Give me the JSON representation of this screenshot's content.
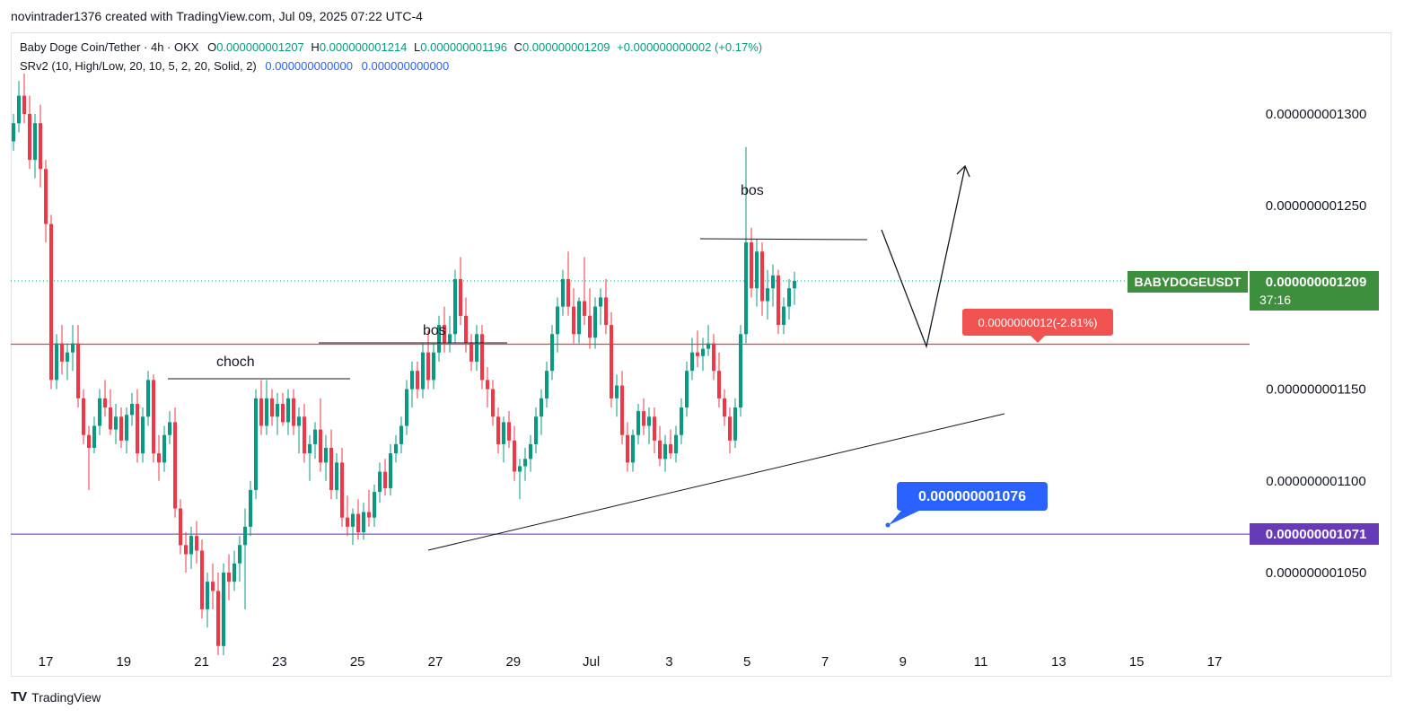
{
  "header": {
    "text": "novintrader1376 created with TradingView.com, Jul 09, 2025 07:22 UTC-4"
  },
  "legend": {
    "symbol": "Baby Doge Coin/Tether · 4h · OKX",
    "o_label": "O",
    "o_value": "0.000000001207",
    "h_label": "H",
    "h_value": "0.000000001214",
    "l_label": "L",
    "l_value": "0.000000001196",
    "c_label": "C",
    "c_value": "0.000000001209",
    "change": "+0.000000000002 (+0.17%)",
    "indicator": "SRv2 (10, High/Low, 20, 10, 5, 2, 20, Solid, 2)",
    "ind_v1": "0.000000000000",
    "ind_v2": "0.000000000000"
  },
  "footer": {
    "logo": "TV",
    "brand": "TradingView"
  },
  "chart_data": {
    "type": "candlestick",
    "symbol": "BABYDOGEUSDT",
    "timeframe": "4h",
    "x_ticks": [
      "17",
      "19",
      "21",
      "23",
      "25",
      "27",
      "29",
      "Jul",
      "3",
      "5",
      "7",
      "9",
      "11",
      "13",
      "15",
      "17"
    ],
    "y_ticks": [
      "0.000000001300",
      "0.000000001250",
      "0.000000001150",
      "0.000000001100",
      "0.000000001050"
    ],
    "y_tick_values": [
      1.3e-09,
      1.25e-09,
      1.15e-09,
      1.1e-09,
      1.05e-09
    ],
    "ylim": [
      1e-09,
      1.32e-09
    ],
    "up_color": "#089981",
    "down_color": "#f23645",
    "candles": [
      [
        1.285,
        1.3,
        1.28,
        1.295
      ],
      [
        1.295,
        1.318,
        1.29,
        1.31
      ],
      [
        1.31,
        1.322,
        1.295,
        1.3
      ],
      [
        1.3,
        1.31,
        1.27,
        1.275
      ],
      [
        1.275,
        1.3,
        1.265,
        1.295
      ],
      [
        1.295,
        1.305,
        1.26,
        1.27
      ],
      [
        1.27,
        1.275,
        1.23,
        1.24
      ],
      [
        1.24,
        1.245,
        1.15,
        1.155
      ],
      [
        1.155,
        1.18,
        1.15,
        1.175
      ],
      [
        1.175,
        1.185,
        1.158,
        1.165
      ],
      [
        1.165,
        1.175,
        1.155,
        1.17
      ],
      [
        1.17,
        1.185,
        1.16,
        1.175
      ],
      [
        1.175,
        1.185,
        1.14,
        1.145
      ],
      [
        1.145,
        1.15,
        1.12,
        1.125
      ],
      [
        1.125,
        1.13,
        1.095,
        1.118
      ],
      [
        1.118,
        1.135,
        1.115,
        1.13
      ],
      [
        1.13,
        1.15,
        1.125,
        1.145
      ],
      [
        1.145,
        1.155,
        1.135,
        1.14
      ],
      [
        1.14,
        1.15,
        1.125,
        1.128
      ],
      [
        1.128,
        1.142,
        1.12,
        1.135
      ],
      [
        1.135,
        1.14,
        1.118,
        1.122
      ],
      [
        1.122,
        1.14,
        1.115,
        1.136
      ],
      [
        1.136,
        1.148,
        1.13,
        1.142
      ],
      [
        1.142,
        1.15,
        1.11,
        1.115
      ],
      [
        1.115,
        1.14,
        1.11,
        1.135
      ],
      [
        1.135,
        1.16,
        1.13,
        1.155
      ],
      [
        1.155,
        1.158,
        1.11,
        1.115
      ],
      [
        1.115,
        1.125,
        1.1,
        1.11
      ],
      [
        1.11,
        1.13,
        1.105,
        1.125
      ],
      [
        1.125,
        1.138,
        1.12,
        1.132
      ],
      [
        1.132,
        1.14,
        1.08,
        1.085
      ],
      [
        1.085,
        1.09,
        1.06,
        1.065
      ],
      [
        1.065,
        1.072,
        1.05,
        1.06
      ],
      [
        1.06,
        1.075,
        1.052,
        1.07
      ],
      [
        1.07,
        1.078,
        1.055,
        1.062
      ],
      [
        1.062,
        1.068,
        1.025,
        1.03
      ],
      [
        1.03,
        1.05,
        1.02,
        1.045
      ],
      [
        1.045,
        1.055,
        1.03,
        1.04
      ],
      [
        1.04,
        1.05,
        1.005,
        1.01
      ],
      [
        1.01,
        1.055,
        1.005,
        1.05
      ],
      [
        1.05,
        1.06,
        1.035,
        1.045
      ],
      [
        1.045,
        1.062,
        1.04,
        1.055
      ],
      [
        1.055,
        1.07,
        1.045,
        1.065
      ],
      [
        1.065,
        1.085,
        1.03,
        1.075
      ],
      [
        1.075,
        1.1,
        1.07,
        1.095
      ],
      [
        1.095,
        1.15,
        1.09,
        1.145
      ],
      [
        1.145,
        1.155,
        1.125,
        1.13
      ],
      [
        1.13,
        1.155,
        1.125,
        1.145
      ],
      [
        1.145,
        1.15,
        1.13,
        1.135
      ],
      [
        1.135,
        1.148,
        1.125,
        1.142
      ],
      [
        1.142,
        1.148,
        1.13,
        1.132
      ],
      [
        1.132,
        1.15,
        1.125,
        1.145
      ],
      [
        1.145,
        1.15,
        1.125,
        1.13
      ],
      [
        1.13,
        1.14,
        1.115,
        1.135
      ],
      [
        1.135,
        1.142,
        1.11,
        1.115
      ],
      [
        1.115,
        1.125,
        1.1,
        1.12
      ],
      [
        1.12,
        1.132,
        1.112,
        1.128
      ],
      [
        1.128,
        1.145,
        1.105,
        1.11
      ],
      [
        1.11,
        1.125,
        1.1,
        1.118
      ],
      [
        1.118,
        1.128,
        1.09,
        1.095
      ],
      [
        1.095,
        1.115,
        1.09,
        1.11
      ],
      [
        1.11,
        1.118,
        1.075,
        1.08
      ],
      [
        1.08,
        1.092,
        1.07,
        1.075
      ],
      [
        1.075,
        1.085,
        1.065,
        1.082
      ],
      [
        1.082,
        1.09,
        1.068,
        1.072
      ],
      [
        1.072,
        1.088,
        1.068,
        1.083
      ],
      [
        1.083,
        1.095,
        1.075,
        1.08
      ],
      [
        1.08,
        1.098,
        1.075,
        1.094
      ],
      [
        1.094,
        1.11,
        1.088,
        1.105
      ],
      [
        1.105,
        1.112,
        1.092,
        1.096
      ],
      [
        1.096,
        1.12,
        1.092,
        1.115
      ],
      [
        1.115,
        1.125,
        1.11,
        1.12
      ],
      [
        1.12,
        1.135,
        1.115,
        1.13
      ],
      [
        1.13,
        1.155,
        1.125,
        1.15
      ],
      [
        1.15,
        1.165,
        1.14,
        1.16
      ],
      [
        1.16,
        1.165,
        1.145,
        1.15
      ],
      [
        1.15,
        1.175,
        1.145,
        1.17
      ],
      [
        1.17,
        1.182,
        1.15,
        1.155
      ],
      [
        1.155,
        1.175,
        1.15,
        1.17
      ],
      [
        1.17,
        1.19,
        1.165,
        1.185
      ],
      [
        1.185,
        1.195,
        1.17,
        1.175
      ],
      [
        1.175,
        1.19,
        1.17,
        1.18
      ],
      [
        1.18,
        1.215,
        1.175,
        1.21
      ],
      [
        1.21,
        1.222,
        1.185,
        1.19
      ],
      [
        1.19,
        1.2,
        1.17,
        1.175
      ],
      [
        1.175,
        1.18,
        1.16,
        1.165
      ],
      [
        1.165,
        1.185,
        1.16,
        1.18
      ],
      [
        1.18,
        1.185,
        1.15,
        1.155
      ],
      [
        1.155,
        1.162,
        1.14,
        1.15
      ],
      [
        1.15,
        1.155,
        1.13,
        1.135
      ],
      [
        1.135,
        1.14,
        1.115,
        1.12
      ],
      [
        1.12,
        1.135,
        1.11,
        1.132
      ],
      [
        1.132,
        1.138,
        1.118,
        1.122
      ],
      [
        1.122,
        1.13,
        1.1,
        1.105
      ],
      [
        1.105,
        1.112,
        1.09,
        1.108
      ],
      [
        1.108,
        1.118,
        1.1,
        1.112
      ],
      [
        1.112,
        1.125,
        1.105,
        1.12
      ],
      [
        1.12,
        1.14,
        1.115,
        1.135
      ],
      [
        1.135,
        1.15,
        1.125,
        1.145
      ],
      [
        1.145,
        1.165,
        1.14,
        1.16
      ],
      [
        1.16,
        1.185,
        1.155,
        1.18
      ],
      [
        1.18,
        1.2,
        1.17,
        1.195
      ],
      [
        1.195,
        1.215,
        1.19,
        1.21
      ],
      [
        1.21,
        1.225,
        1.19,
        1.195
      ],
      [
        1.195,
        1.205,
        1.175,
        1.18
      ],
      [
        1.18,
        1.2,
        1.175,
        1.198
      ],
      [
        1.198,
        1.222,
        1.185,
        1.19
      ],
      [
        1.19,
        1.205,
        1.172,
        1.178
      ],
      [
        1.178,
        1.2,
        1.172,
        1.195
      ],
      [
        1.195,
        1.205,
        1.185,
        1.2
      ],
      [
        1.2,
        1.21,
        1.18,
        1.185
      ],
      [
        1.185,
        1.192,
        1.14,
        1.145
      ],
      [
        1.145,
        1.158,
        1.135,
        1.152
      ],
      [
        1.152,
        1.16,
        1.12,
        1.125
      ],
      [
        1.125,
        1.132,
        1.105,
        1.11
      ],
      [
        1.11,
        1.128,
        1.105,
        1.125
      ],
      [
        1.125,
        1.142,
        1.12,
        1.138
      ],
      [
        1.138,
        1.145,
        1.125,
        1.13
      ],
      [
        1.13,
        1.14,
        1.12,
        1.135
      ],
      [
        1.135,
        1.14,
        1.115,
        1.122
      ],
      [
        1.122,
        1.13,
        1.108,
        1.112
      ],
      [
        1.112,
        1.125,
        1.105,
        1.12
      ],
      [
        1.12,
        1.128,
        1.112,
        1.115
      ],
      [
        1.115,
        1.13,
        1.11,
        1.125
      ],
      [
        1.125,
        1.145,
        1.12,
        1.14
      ],
      [
        1.14,
        1.165,
        1.135,
        1.16
      ],
      [
        1.16,
        1.178,
        1.155,
        1.17
      ],
      [
        1.17,
        1.182,
        1.162,
        1.168
      ],
      [
        1.168,
        1.178,
        1.16,
        1.172
      ],
      [
        1.172,
        1.185,
        1.168,
        1.175
      ],
      [
        1.175,
        1.18,
        1.155,
        1.16
      ],
      [
        1.16,
        1.17,
        1.14,
        1.145
      ],
      [
        1.145,
        1.15,
        1.13,
        1.135
      ],
      [
        1.135,
        1.14,
        1.115,
        1.122
      ],
      [
        1.122,
        1.145,
        1.118,
        1.14
      ],
      [
        1.14,
        1.185,
        1.135,
        1.18
      ],
      [
        1.18,
        1.282,
        1.175,
        1.23
      ],
      [
        1.23,
        1.238,
        1.2,
        1.205
      ],
      [
        1.205,
        1.232,
        1.195,
        1.225
      ],
      [
        1.225,
        1.23,
        1.19,
        1.198
      ],
      [
        1.198,
        1.215,
        1.188,
        1.205
      ],
      [
        1.205,
        1.218,
        1.195,
        1.212
      ],
      [
        1.212,
        1.215,
        1.18,
        1.185
      ],
      [
        1.185,
        1.2,
        1.18,
        1.195
      ],
      [
        1.195,
        1.21,
        1.188,
        1.205
      ],
      [
        1.205,
        1.214,
        1.196,
        1.209
      ]
    ],
    "levels": [
      {
        "name": "resistance",
        "value": 1.1745e-09,
        "color": "#f23645"
      },
      {
        "name": "support",
        "value": 1.071e-09,
        "color": "#7e57c2"
      }
    ],
    "annotations": [
      "choch",
      "bos",
      "bos"
    ],
    "price_labels": {
      "symbol_tag": "BABYDOGEUSDT",
      "last_price": "0.000000001209",
      "countdown": "37:16",
      "red_box": "0.0000000012(-2.81%)",
      "blue_box": "0.000000001076",
      "purple_box": "0.000000001071"
    },
    "colors": {
      "last_price_bg": "#22ab94",
      "symbol_tag_bg": "#3d8f3d",
      "red_label_bg": "#f05350",
      "blue_label_bg": "#2962ff",
      "purple_label_bg": "#673ab7"
    }
  }
}
